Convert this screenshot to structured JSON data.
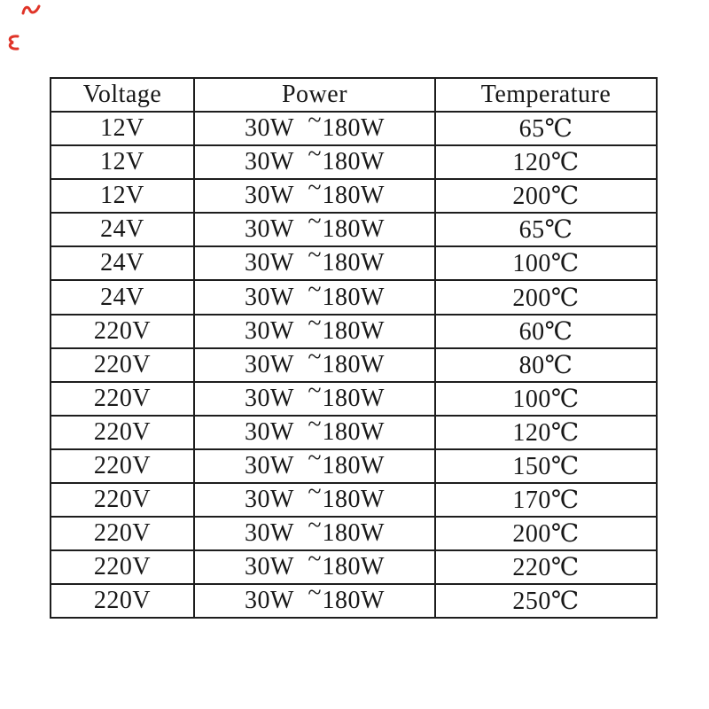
{
  "page": {
    "background_color": "#ffffff"
  },
  "decorations": {
    "red_mark_color": "#e03428"
  },
  "table": {
    "border_color": "#1d1d1d",
    "text_color": "#171717",
    "headers": [
      "Voltage",
      "Power",
      "Temperature"
    ],
    "power_separator": "~",
    "rows": [
      {
        "voltage": "12V",
        "power_low": "30W",
        "power_high": "180W",
        "temperature": "65℃"
      },
      {
        "voltage": "12V",
        "power_low": "30W",
        "power_high": "180W",
        "temperature": "120℃"
      },
      {
        "voltage": "12V",
        "power_low": "30W",
        "power_high": "180W",
        "temperature": "200℃"
      },
      {
        "voltage": "24V",
        "power_low": "30W",
        "power_high": "180W",
        "temperature": "65℃"
      },
      {
        "voltage": "24V",
        "power_low": "30W",
        "power_high": "180W",
        "temperature": "100℃"
      },
      {
        "voltage": "24V",
        "power_low": "30W",
        "power_high": "180W",
        "temperature": "200℃"
      },
      {
        "voltage": "220V",
        "power_low": "30W",
        "power_high": "180W",
        "temperature": "60℃"
      },
      {
        "voltage": "220V",
        "power_low": "30W",
        "power_high": "180W",
        "temperature": "80℃"
      },
      {
        "voltage": "220V",
        "power_low": "30W",
        "power_high": "180W",
        "temperature": "100℃"
      },
      {
        "voltage": "220V",
        "power_low": "30W",
        "power_high": "180W",
        "temperature": "120℃"
      },
      {
        "voltage": "220V",
        "power_low": "30W",
        "power_high": "180W",
        "temperature": "150℃"
      },
      {
        "voltage": "220V",
        "power_low": "30W",
        "power_high": "180W",
        "temperature": "170℃"
      },
      {
        "voltage": "220V",
        "power_low": "30W",
        "power_high": "180W",
        "temperature": "200℃"
      },
      {
        "voltage": "220V",
        "power_low": "30W",
        "power_high": "180W",
        "temperature": "220℃"
      },
      {
        "voltage": "220V",
        "power_low": "30W",
        "power_high": "180W",
        "temperature": "250℃"
      }
    ]
  },
  "chart_data": {
    "type": "table",
    "title": "",
    "columns": [
      "Voltage",
      "Power",
      "Temperature"
    ],
    "rows": [
      [
        "12V",
        "30W ~180W",
        "65℃"
      ],
      [
        "12V",
        "30W ~180W",
        "120℃"
      ],
      [
        "12V",
        "30W ~180W",
        "200℃"
      ],
      [
        "24V",
        "30W ~180W",
        "65℃"
      ],
      [
        "24V",
        "30W ~180W",
        "100℃"
      ],
      [
        "24V",
        "30W ~180W",
        "200℃"
      ],
      [
        "220V",
        "30W ~180W",
        "60℃"
      ],
      [
        "220V",
        "30W ~180W",
        "80℃"
      ],
      [
        "220V",
        "30W ~180W",
        "100℃"
      ],
      [
        "220V",
        "30W ~180W",
        "120℃"
      ],
      [
        "220V",
        "30W ~180W",
        "150℃"
      ],
      [
        "220V",
        "30W ~180W",
        "170℃"
      ],
      [
        "220V",
        "30W ~180W",
        "200℃"
      ],
      [
        "220V",
        "30W ~180W",
        "220℃"
      ],
      [
        "220V",
        "30W ~180W",
        "250℃"
      ]
    ]
  }
}
